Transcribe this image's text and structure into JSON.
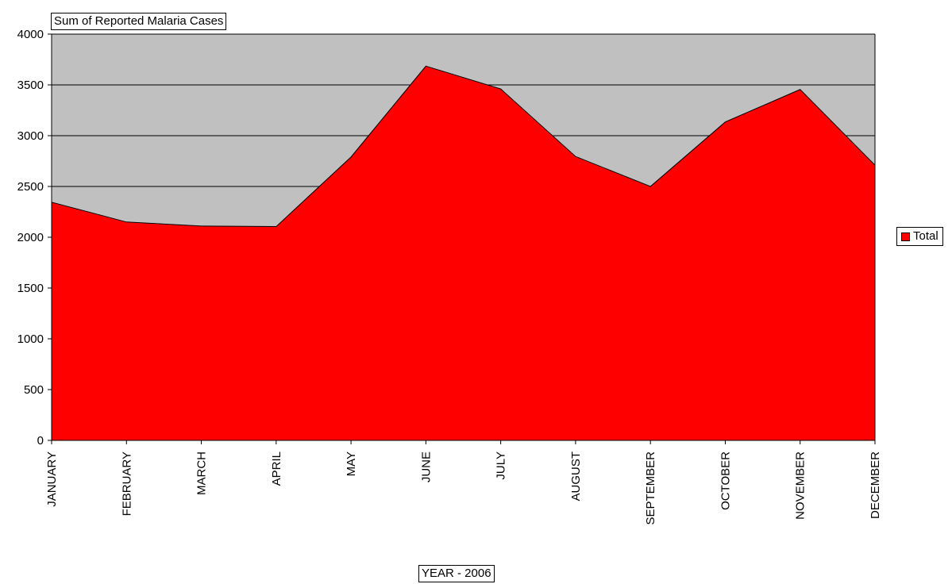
{
  "chart_data": {
    "type": "area",
    "title": "Sum of Reported Malaria Cases",
    "xlabel": "YEAR - 2006",
    "ylabel": "",
    "categories": [
      "JANUARY",
      "FEBRUARY",
      "MARCH",
      "APRIL",
      "MAY",
      "JUNE",
      "JULY",
      "AUGUST",
      "SEPTEMBER",
      "OCTOBER",
      "NOVEMBER",
      "DECEMBER"
    ],
    "series": [
      {
        "name": "Total",
        "values": [
          2345,
          2150,
          2110,
          2105,
          2790,
          3685,
          3460,
          2795,
          2500,
          3135,
          3455,
          2710
        ]
      }
    ],
    "ylim": [
      0,
      4000
    ],
    "yticks": [
      0,
      500,
      1000,
      1500,
      2000,
      2500,
      3000,
      3500,
      4000
    ],
    "grid": true,
    "legend_position": "right",
    "colors": {
      "fill": "#ff0000",
      "plot_background": "#c0c0c0",
      "gridline": "#000000"
    }
  }
}
